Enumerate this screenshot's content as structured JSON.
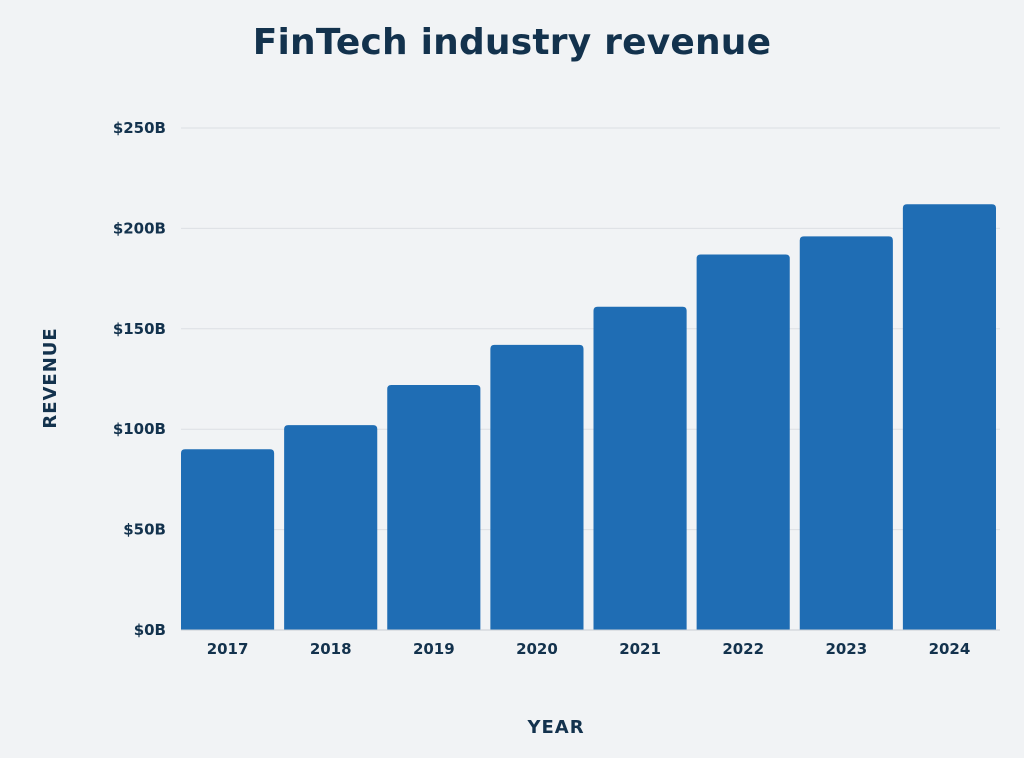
{
  "chart_data": {
    "type": "bar",
    "title": "FinTech industry revenue",
    "xlabel": "YEAR",
    "ylabel": "REVENUE",
    "categories": [
      "2017",
      "2018",
      "2019",
      "2020",
      "2021",
      "2022",
      "2023",
      "2024"
    ],
    "values": [
      90,
      102,
      122,
      142,
      161,
      187,
      196,
      212
    ],
    "ylim": [
      0,
      250
    ],
    "yticks": [
      0,
      50,
      100,
      150,
      200,
      250
    ],
    "ytick_labels": [
      "$0B",
      "$50B",
      "$100B",
      "$150B",
      "$200B",
      "$250B"
    ],
    "grid": true,
    "legend": "none",
    "bar_color": "#1f6db4",
    "text_color": "#13324d",
    "background": "#f1f3f5"
  }
}
